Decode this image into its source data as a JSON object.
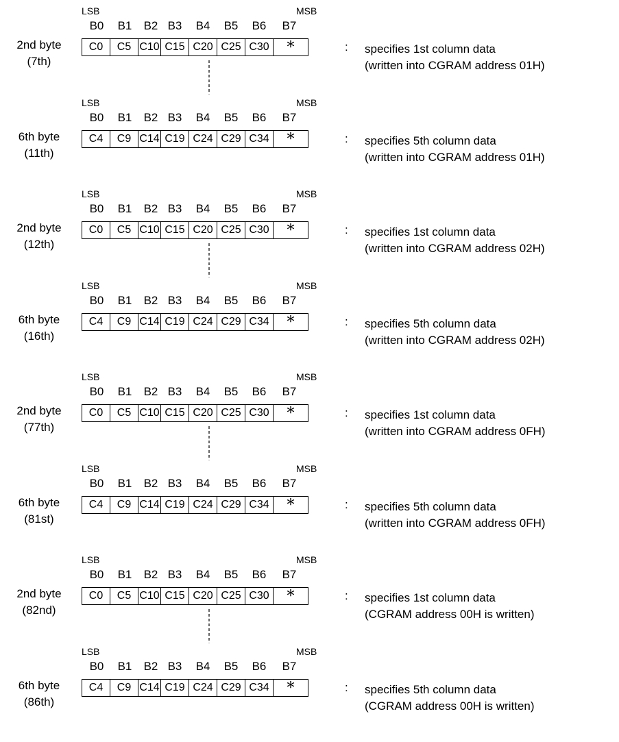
{
  "bits": [
    "B0",
    "B1",
    "B2",
    "B3",
    "B4",
    "B5",
    "B6",
    "B7"
  ],
  "lsb_label": "LSB",
  "msb_label": "MSB",
  "colon": ":",
  "groups": [
    {
      "byte_label": "2nd byte",
      "byte_index": "(7th)",
      "cells": [
        "C0",
        "C5",
        "C10",
        "C15",
        "C20",
        "C25",
        "C30",
        "*"
      ],
      "desc_line1": "specifies 1st column data",
      "desc_line2": "(written into CGRAM address 01H)"
    },
    {
      "byte_label": "6th byte",
      "byte_index": "(11th)",
      "cells": [
        "C4",
        "C9",
        "C14",
        "C19",
        "C24",
        "C29",
        "C34",
        "*"
      ],
      "desc_line1": "specifies 5th column data",
      "desc_line2": "(written into CGRAM address 01H)"
    },
    {
      "byte_label": "2nd byte",
      "byte_index": "(12th)",
      "cells": [
        "C0",
        "C5",
        "C10",
        "C15",
        "C20",
        "C25",
        "C30",
        "*"
      ],
      "desc_line1": "specifies 1st column data",
      "desc_line2": "(written into CGRAM address 02H)"
    },
    {
      "byte_label": "6th byte",
      "byte_index": "(16th)",
      "cells": [
        "C4",
        "C9",
        "C14",
        "C19",
        "C24",
        "C29",
        "C34",
        "*"
      ],
      "desc_line1": "specifies 5th column data",
      "desc_line2": "(written into CGRAM address 02H)"
    },
    {
      "byte_label": "2nd byte",
      "byte_index": "(77th)",
      "cells": [
        "C0",
        "C5",
        "C10",
        "C15",
        "C20",
        "C25",
        "C30",
        "*"
      ],
      "desc_line1": "specifies 1st column data",
      "desc_line2": "(written into CGRAM address 0FH)"
    },
    {
      "byte_label": "6th byte",
      "byte_index": "(81st)",
      "cells": [
        "C4",
        "C9",
        "C14",
        "C19",
        "C24",
        "C29",
        "C34",
        "*"
      ],
      "desc_line1": "specifies 5th column data",
      "desc_line2": "(written into CGRAM address 0FH)"
    },
    {
      "byte_label": "2nd byte",
      "byte_index": "(82nd)",
      "cells": [
        "C0",
        "C5",
        "C10",
        "C15",
        "C20",
        "C25",
        "C30",
        "*"
      ],
      "desc_line1": "specifies 1st column data",
      "desc_line2": "(CGRAM address 00H is written)"
    },
    {
      "byte_label": "6th byte",
      "byte_index": "(86th)",
      "cells": [
        "C4",
        "C9",
        "C14",
        "C19",
        "C24",
        "C29",
        "C34",
        "*"
      ],
      "desc_line1": "specifies 5th column data",
      "desc_line2": "(CGRAM address 00H is written)"
    }
  ]
}
